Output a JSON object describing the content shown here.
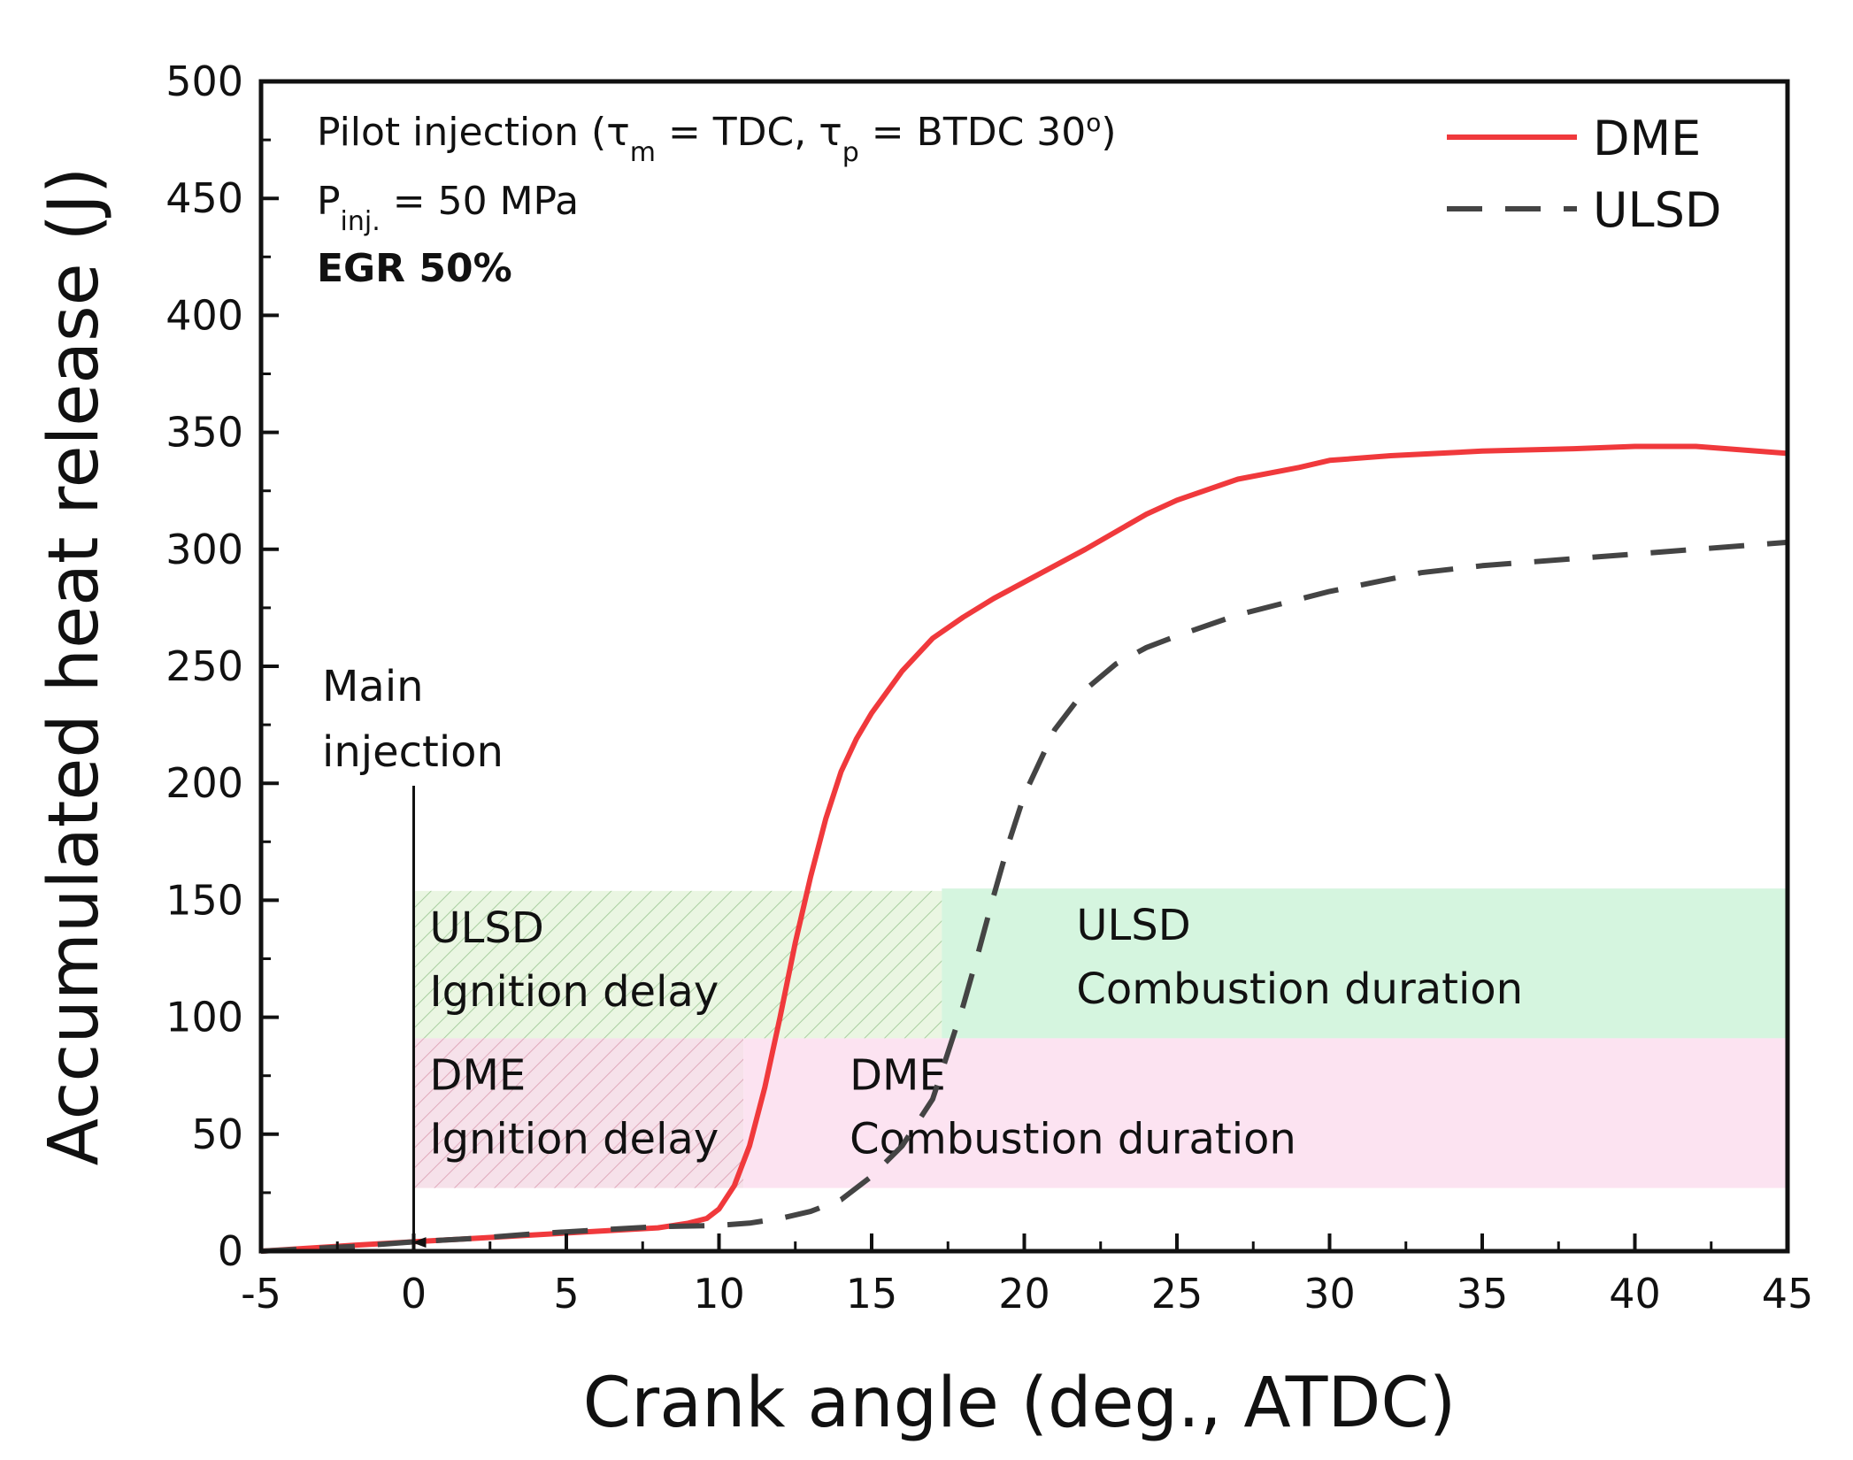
{
  "chart_data": {
    "type": "line",
    "xlabel": "Crank angle (deg., ATDC)",
    "ylabel": "Accumulated heat release (J)",
    "xlim": [
      -5,
      45
    ],
    "ylim": [
      0,
      500
    ],
    "xticks": [
      -5,
      0,
      5,
      10,
      15,
      20,
      25,
      30,
      35,
      40,
      45
    ],
    "yticks": [
      0,
      50,
      100,
      150,
      200,
      250,
      300,
      350,
      400,
      450,
      500
    ],
    "grid": false,
    "legend_position": "top-right",
    "series": [
      {
        "name": "DME",
        "color": "#f0393c",
        "style": "solid",
        "x": [
          -5,
          -2,
          0,
          2,
          4,
          6,
          8,
          9,
          9.6,
          10,
          10.5,
          11,
          11.5,
          12,
          12.5,
          13,
          13.5,
          14,
          14.5,
          15,
          16,
          17,
          18,
          19,
          20,
          22,
          24,
          25,
          27,
          29,
          30,
          32,
          35,
          38,
          40,
          42,
          43,
          45
        ],
        "y": [
          0,
          2.5,
          4,
          5.5,
          7,
          8.5,
          10,
          12,
          14,
          18,
          28,
          45,
          70,
          100,
          132,
          160,
          185,
          205,
          219,
          230,
          248,
          262,
          271,
          279,
          286,
          300,
          315,
          321,
          330,
          335,
          338,
          340,
          342,
          343,
          344,
          344,
          343,
          341
        ]
      },
      {
        "name": "ULSD",
        "color": "#444444",
        "style": "dashed",
        "x": [
          -5,
          -2,
          0,
          2,
          4,
          6,
          8,
          10,
          11,
          12,
          13,
          14,
          15,
          16,
          17,
          17.5,
          18,
          18.5,
          19,
          19.5,
          20,
          21,
          22,
          23,
          24,
          25,
          27,
          30,
          33,
          35,
          38,
          40,
          42,
          45
        ],
        "y": [
          0,
          2,
          4,
          5.5,
          7.5,
          9,
          10.5,
          11,
          12,
          14,
          17,
          22,
          32,
          45,
          65,
          85,
          105,
          128,
          152,
          175,
          195,
          223,
          240,
          251,
          258,
          263,
          272,
          282,
          290,
          293,
          296,
          298,
          300,
          303
        ]
      }
    ],
    "regions": [
      {
        "label_line1": "ULSD",
        "label_line2": "Ignition delay",
        "x0": 0,
        "x1": 17.3,
        "y0": 91,
        "y1": 154,
        "fill": "#eaf6e2",
        "hatch": "#a9cfa0"
      },
      {
        "label_line1": "ULSD",
        "label_line2": "Combustion duration",
        "x0": 17.3,
        "x1": 45,
        "y0": 91,
        "y1": 155,
        "fill": "#d5f5df"
      },
      {
        "label_line1": "DME",
        "label_line2": "Ignition delay",
        "x0": 0,
        "x1": 10.8,
        "y0": 27,
        "y1": 91,
        "fill": "#f6e1ea",
        "hatch": "#e0a9bb"
      },
      {
        "label_line1": "DME",
        "label_line2": "Combustion duration",
        "x0": 10.8,
        "x1": 45,
        "y0": 27,
        "y1": 91,
        "fill": "#fce3f1"
      }
    ],
    "annotations": {
      "pilot_prefix": "Pilot injection (",
      "tau": "τ",
      "sub_m": "m",
      "eq_tdc": " = TDC, ",
      "sub_p": "p",
      "eq_btdc": " = BTDC 30",
      "degree": "o",
      "close_paren": ")",
      "p_letter": "P",
      "sub_inj": "inj.",
      "p_value": " = 50 MPa",
      "egr": "EGR 50%",
      "main_line1": "Main",
      "main_line2": "injection",
      "main_arrow_x": 0
    }
  }
}
